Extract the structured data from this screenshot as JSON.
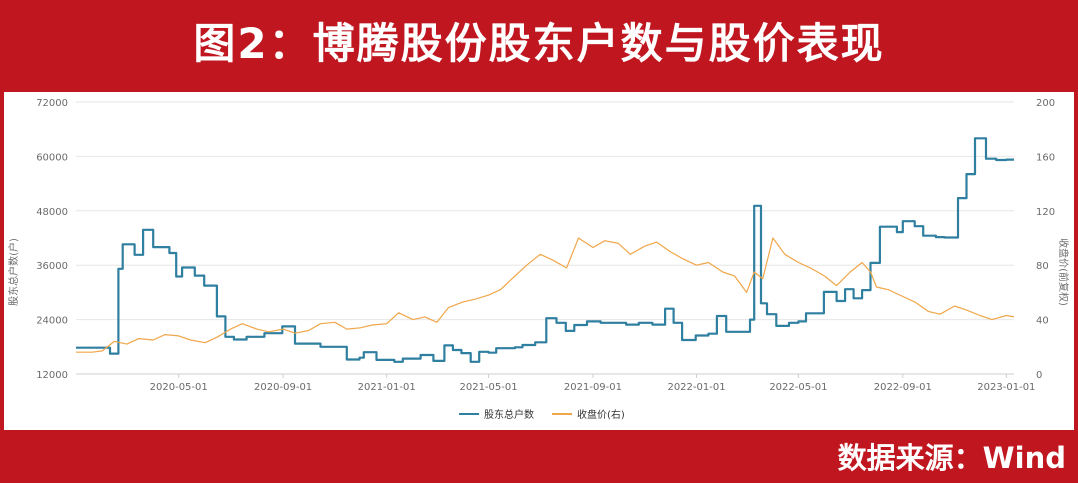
{
  "header": {
    "title": "图2：博腾股份股东户数与股价表现"
  },
  "footer": {
    "source": "数据来源：Wind"
  },
  "colors": {
    "shareholders": "#2f7fa0",
    "price": "#f0a64a",
    "banner": "#c0161f"
  },
  "chart_data": {
    "type": "line",
    "ylabel": "股东总户数(户)",
    "ylabel_right": "收盘价(前复权)",
    "ylim": [
      12000,
      72000
    ],
    "ylim_right": [
      0,
      200
    ],
    "yticks": [
      "72000",
      "60000",
      "48000",
      "36000",
      "24000",
      "12000"
    ],
    "yticks_right": [
      "200",
      "160",
      "120",
      "80",
      "40",
      "0"
    ],
    "xticks": [
      "2020-05-01",
      "2020-09-01",
      "2021-01-01",
      "2021-05-01",
      "2021-09-01",
      "2022-01-01",
      "2022-05-01",
      "2022-09-01",
      "2023-01-01"
    ],
    "xlim": [
      "2020-01-01",
      "2023-01-10"
    ],
    "legend": {
      "position": "bottom-center"
    },
    "series": [
      {
        "name": "股东总户数",
        "axis": "left",
        "step": true,
        "points": [
          [
            "2020-01-01",
            17800
          ],
          [
            "2020-02-10",
            16500
          ],
          [
            "2020-02-20",
            35200
          ],
          [
            "2020-02-25",
            40600
          ],
          [
            "2020-03-10",
            38300
          ],
          [
            "2020-03-20",
            43800
          ],
          [
            "2020-04-01",
            40000
          ],
          [
            "2020-04-20",
            38700
          ],
          [
            "2020-04-28",
            33500
          ],
          [
            "2020-05-05",
            35500
          ],
          [
            "2020-05-20",
            33700
          ],
          [
            "2020-05-31",
            31500
          ],
          [
            "2020-06-15",
            24700
          ],
          [
            "2020-06-25",
            20200
          ],
          [
            "2020-07-05",
            19600
          ],
          [
            "2020-07-20",
            20200
          ],
          [
            "2020-08-10",
            21000
          ],
          [
            "2020-08-31",
            22500
          ],
          [
            "2020-09-15",
            18700
          ],
          [
            "2020-10-15",
            18000
          ],
          [
            "2020-11-15",
            15200
          ],
          [
            "2020-11-30",
            15600
          ],
          [
            "2020-12-05",
            16800
          ],
          [
            "2020-12-20",
            15100
          ],
          [
            "2021-01-10",
            14700
          ],
          [
            "2021-01-20",
            15400
          ],
          [
            "2021-02-10",
            16200
          ],
          [
            "2021-02-25",
            14900
          ],
          [
            "2021-03-10",
            18300
          ],
          [
            "2021-03-20",
            17300
          ],
          [
            "2021-03-30",
            16600
          ],
          [
            "2021-04-10",
            14700
          ],
          [
            "2021-04-20",
            16900
          ],
          [
            "2021-05-01",
            16700
          ],
          [
            "2021-05-10",
            17700
          ],
          [
            "2021-06-01",
            17900
          ],
          [
            "2021-06-10",
            18400
          ],
          [
            "2021-06-25",
            19000
          ],
          [
            "2021-07-08",
            24300
          ],
          [
            "2021-07-20",
            23300
          ],
          [
            "2021-07-31",
            21500
          ],
          [
            "2021-08-10",
            22800
          ],
          [
            "2021-08-25",
            23600
          ],
          [
            "2021-09-10",
            23300
          ],
          [
            "2021-10-10",
            22900
          ],
          [
            "2021-10-25",
            23300
          ],
          [
            "2021-11-10",
            22900
          ],
          [
            "2021-11-25",
            26400
          ],
          [
            "2021-12-05",
            23300
          ],
          [
            "2021-12-15",
            19500
          ],
          [
            "2021-12-31",
            20500
          ],
          [
            "2022-01-15",
            20900
          ],
          [
            "2022-01-25",
            24800
          ],
          [
            "2022-02-05",
            21300
          ],
          [
            "2022-03-05",
            24000
          ],
          [
            "2022-03-10",
            49100
          ],
          [
            "2022-03-18",
            27600
          ],
          [
            "2022-03-25",
            25200
          ],
          [
            "2022-04-05",
            22600
          ],
          [
            "2022-04-20",
            23300
          ],
          [
            "2022-05-01",
            23600
          ],
          [
            "2022-05-10",
            25400
          ],
          [
            "2022-05-31",
            30100
          ],
          [
            "2022-06-15",
            28100
          ],
          [
            "2022-06-25",
            30700
          ],
          [
            "2022-07-05",
            28700
          ],
          [
            "2022-07-15",
            30500
          ],
          [
            "2022-07-25",
            36500
          ],
          [
            "2022-08-05",
            44500
          ],
          [
            "2022-08-25",
            43300
          ],
          [
            "2022-09-01",
            45700
          ],
          [
            "2022-09-15",
            44600
          ],
          [
            "2022-09-25",
            42500
          ],
          [
            "2022-10-10",
            42200
          ],
          [
            "2022-10-20",
            42100
          ],
          [
            "2022-11-05",
            50800
          ],
          [
            "2022-11-15",
            56100
          ],
          [
            "2022-11-25",
            64000
          ],
          [
            "2022-12-08",
            59500
          ],
          [
            "2022-12-20",
            59200
          ],
          [
            "2023-01-01",
            59300
          ],
          [
            "2023-01-10",
            59300
          ]
        ]
      },
      {
        "name": "收盘价(右)",
        "axis": "right",
        "points": [
          [
            "2020-01-01",
            16
          ],
          [
            "2020-01-20",
            16
          ],
          [
            "2020-02-01",
            17
          ],
          [
            "2020-02-15",
            24
          ],
          [
            "2020-03-01",
            22
          ],
          [
            "2020-03-15",
            26
          ],
          [
            "2020-04-01",
            25
          ],
          [
            "2020-04-15",
            29
          ],
          [
            "2020-05-01",
            28
          ],
          [
            "2020-05-15",
            25
          ],
          [
            "2020-06-01",
            23
          ],
          [
            "2020-06-15",
            27
          ],
          [
            "2020-07-01",
            33
          ],
          [
            "2020-07-15",
            37
          ],
          [
            "2020-08-01",
            33
          ],
          [
            "2020-08-15",
            31
          ],
          [
            "2020-09-01",
            33
          ],
          [
            "2020-09-15",
            30
          ],
          [
            "2020-10-01",
            32
          ],
          [
            "2020-10-15",
            37
          ],
          [
            "2020-11-01",
            38
          ],
          [
            "2020-11-15",
            33
          ],
          [
            "2020-12-01",
            34
          ],
          [
            "2020-12-15",
            36
          ],
          [
            "2021-01-01",
            37
          ],
          [
            "2021-01-15",
            45
          ],
          [
            "2021-02-01",
            40
          ],
          [
            "2021-02-15",
            42
          ],
          [
            "2021-03-01",
            38
          ],
          [
            "2021-03-15",
            49
          ],
          [
            "2021-04-01",
            53
          ],
          [
            "2021-04-15",
            55
          ],
          [
            "2021-05-01",
            58
          ],
          [
            "2021-05-15",
            62
          ],
          [
            "2021-06-01",
            72
          ],
          [
            "2021-06-15",
            80
          ],
          [
            "2021-07-01",
            88
          ],
          [
            "2021-07-15",
            84
          ],
          [
            "2021-08-01",
            78
          ],
          [
            "2021-08-15",
            100
          ],
          [
            "2021-09-01",
            93
          ],
          [
            "2021-09-15",
            98
          ],
          [
            "2021-10-01",
            96
          ],
          [
            "2021-10-15",
            88
          ],
          [
            "2021-11-01",
            94
          ],
          [
            "2021-11-15",
            97
          ],
          [
            "2021-12-01",
            90
          ],
          [
            "2021-12-15",
            85
          ],
          [
            "2022-01-01",
            80
          ],
          [
            "2022-01-15",
            82
          ],
          [
            "2022-02-01",
            75
          ],
          [
            "2022-02-15",
            72
          ],
          [
            "2022-03-01",
            60
          ],
          [
            "2022-03-10",
            75
          ],
          [
            "2022-03-20",
            70
          ],
          [
            "2022-04-01",
            100
          ],
          [
            "2022-04-15",
            88
          ],
          [
            "2022-05-01",
            82
          ],
          [
            "2022-05-15",
            78
          ],
          [
            "2022-06-01",
            72
          ],
          [
            "2022-06-15",
            65
          ],
          [
            "2022-07-01",
            75
          ],
          [
            "2022-07-15",
            82
          ],
          [
            "2022-07-25",
            75
          ],
          [
            "2022-08-01",
            64
          ],
          [
            "2022-08-15",
            62
          ],
          [
            "2022-09-01",
            57
          ],
          [
            "2022-09-15",
            53
          ],
          [
            "2022-10-01",
            46
          ],
          [
            "2022-10-15",
            44
          ],
          [
            "2022-11-01",
            50
          ],
          [
            "2022-11-15",
            47
          ],
          [
            "2022-12-01",
            43
          ],
          [
            "2022-12-15",
            40
          ],
          [
            "2023-01-01",
            43
          ],
          [
            "2023-01-10",
            42
          ]
        ]
      }
    ]
  }
}
